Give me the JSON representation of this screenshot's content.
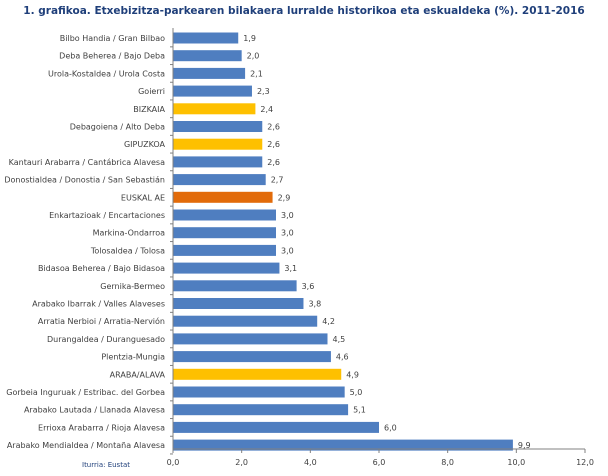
{
  "chart_data": {
    "type": "bar",
    "orientation": "horizontal",
    "title": "1. grafikoa. Etxebizitza-parkearen bilakaera lurralde historikoa eta eskualdeka (%). 2011-2016",
    "categories": [
      "Bilbo Handia / Gran Bilbao",
      "Deba Beherea / Bajo Deba",
      "Urola-Kostaldea / Urola Costa",
      "Goierri",
      "BIZKAIA",
      "Debagoiena / Alto Deba",
      "GIPUZKOA",
      "Kantauri Arabarra / Cantábrica Alavesa",
      "Donostialdea / Donostia / San Sebastián",
      "EUSKAL AE",
      "Enkartazioak / Encartaciones",
      "Markina-Ondarroa",
      "Tolosaldea / Tolosa",
      "Bidasoa Beherea / Bajo Bidasoa",
      "Gernika-Bermeo",
      "Arabako Ibarrak / Valles Alaveses",
      "Arratia Nerbioi / Arratia-Nervión",
      "Durangaldea / Duranguesado",
      "Plentzia-Mungia",
      "ARABA/ALAVA",
      "Gorbeia Inguruak / Estribac. del Gorbea",
      "Arabako Lautada / Llanada Alavesa",
      "Errioxa Arabarra / Rioja Alavesa",
      "Arabako Mendialdea / Montaña Alavesa"
    ],
    "values": [
      1.9,
      2.0,
      2.1,
      2.3,
      2.4,
      2.6,
      2.6,
      2.6,
      2.7,
      2.9,
      3.0,
      3.0,
      3.0,
      3.1,
      3.6,
      3.8,
      4.2,
      4.5,
      4.6,
      4.9,
      5.0,
      5.1,
      6.0,
      9.9
    ],
    "value_labels": [
      "1,9",
      "2,0",
      "2,1",
      "2,3",
      "2,4",
      "2,6",
      "2,6",
      "2,6",
      "2,7",
      "2,9",
      "3,0",
      "3,0",
      "3,0",
      "3,1",
      "3,6",
      "3,8",
      "4,2",
      "4,5",
      "4,6",
      "4,9",
      "5,0",
      "5,1",
      "6,0",
      "9,9"
    ],
    "bar_kind": [
      "region",
      "region",
      "region",
      "region",
      "province",
      "region",
      "province",
      "region",
      "region",
      "total",
      "region",
      "region",
      "region",
      "region",
      "region",
      "region",
      "region",
      "region",
      "region",
      "province",
      "region",
      "region",
      "region",
      "region"
    ],
    "colors": {
      "region": "#4f7ec0",
      "province": "#fec000",
      "total": "#e26b0a",
      "grid": "#d9d9d9",
      "axis": "#808080"
    },
    "xlim": [
      0,
      12
    ],
    "xticks": [
      0,
      2,
      4,
      6,
      8,
      10,
      12
    ],
    "xtick_labels": [
      "0,0",
      "2,0",
      "4,0",
      "6,0",
      "8,0",
      "10,0",
      "12,0"
    ],
    "grid": false,
    "xlabel": "",
    "ylabel": "",
    "source": "Iturria: Eustat"
  }
}
